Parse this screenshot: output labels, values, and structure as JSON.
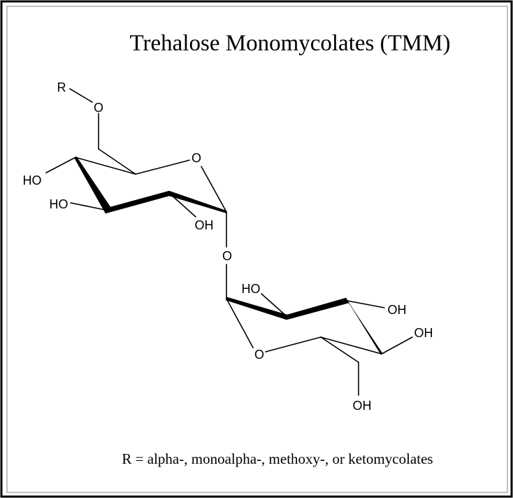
{
  "title": "Trehalose Monomycolates (TMM)",
  "caption": "R = alpha-, monoalpha-, methoxy-, or ketomycolates",
  "atoms": {
    "r_group": "R",
    "ring1_ester_o": "O",
    "ring1_ring_o": "O",
    "ring1_ho_c4": "HO",
    "ring1_ho_c3": "HO",
    "ring1_oh_c2": "OH",
    "glycosidic_o": "O",
    "ring2_ho_c2": "HO",
    "ring2_oh_c3": "OH",
    "ring2_oh_c4": "OH",
    "ring2_ring_o": "O",
    "ring2_oh_c6": "OH"
  },
  "colors": {
    "ink": "#000000",
    "inner_frame": "#999999",
    "background": "#ffffff"
  }
}
